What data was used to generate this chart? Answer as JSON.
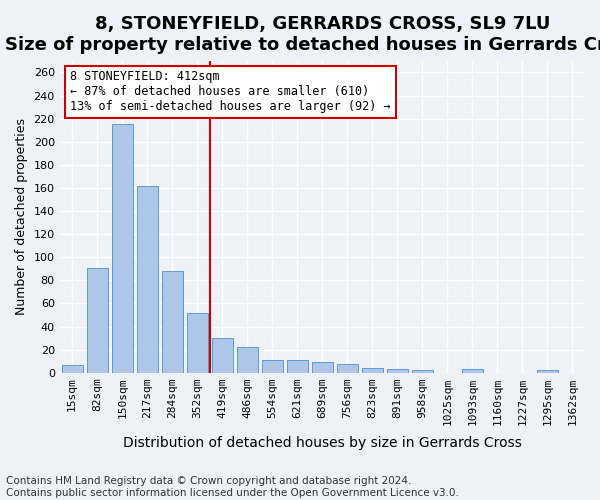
{
  "title": "8, STONEYFIELD, GERRARDS CROSS, SL9 7LU",
  "subtitle": "Size of property relative to detached houses in Gerrards Cross",
  "xlabel": "Distribution of detached houses by size in Gerrards Cross",
  "ylabel": "Number of detached properties",
  "categories": [
    "15sqm",
    "82sqm",
    "150sqm",
    "217sqm",
    "284sqm",
    "352sqm",
    "419sqm",
    "486sqm",
    "554sqm",
    "621sqm",
    "689sqm",
    "756sqm",
    "823sqm",
    "891sqm",
    "958sqm",
    "1025sqm",
    "1093sqm",
    "1160sqm",
    "1227sqm",
    "1295sqm",
    "1362sqm"
  ],
  "values": [
    7,
    91,
    215,
    162,
    88,
    52,
    30,
    22,
    11,
    11,
    9,
    8,
    4,
    3,
    2,
    0,
    3,
    0,
    0,
    2,
    0
  ],
  "bar_color": "#aec7e8",
  "bar_edge_color": "#5b9bd5",
  "property_line_x": 5.5,
  "property_line_color": "#cc0000",
  "annotation_box_color": "#cc0000",
  "annotation_text_line1": "8 STONEYFIELD: 412sqm",
  "annotation_text_line2": "← 87% of detached houses are smaller (610)",
  "annotation_text_line3": "13% of semi-detached houses are larger (92) →",
  "ylim": [
    0,
    270
  ],
  "yticks": [
    0,
    20,
    40,
    60,
    80,
    100,
    120,
    140,
    160,
    180,
    200,
    220,
    240,
    260
  ],
  "background_color": "#eef2f8",
  "plot_background_color": "#eef2f8",
  "grid_color": "#ffffff",
  "title_fontsize": 13,
  "subtitle_fontsize": 10,
  "xlabel_fontsize": 10,
  "ylabel_fontsize": 9,
  "tick_fontsize": 8,
  "annotation_fontsize": 8.5,
  "footer_fontsize": 7.5,
  "footer_line1": "Contains HM Land Registry data © Crown copyright and database right 2024.",
  "footer_line2": "Contains public sector information licensed under the Open Government Licence v3.0."
}
